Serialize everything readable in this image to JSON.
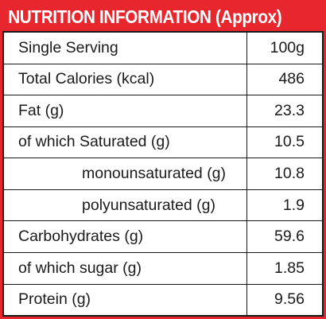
{
  "title": "NUTRITION INFORMATION (Approx)",
  "colors": {
    "header_background": "#e8262d",
    "header_text": "#ffffff",
    "table_text": "#1a1a1a"
  },
  "rows": [
    {
      "label": "Single Serving",
      "value": "100g",
      "indent": false
    },
    {
      "label": "Total Calories (kcal)",
      "value": "486",
      "indent": false
    },
    {
      "label": "Fat (g)",
      "value": "23.3",
      "indent": false
    },
    {
      "label": "of which Saturated (g)",
      "value": "10.5",
      "indent": false
    },
    {
      "label": "monounsaturated (g)",
      "value": "10.8",
      "indent": true
    },
    {
      "label": "polyunsaturated (g)",
      "value": "1.9",
      "indent": true
    },
    {
      "label": "Carbohydrates (g)",
      "value": "59.6",
      "indent": false
    },
    {
      "label": "of which sugar (g)",
      "value": "1.85",
      "indent": false
    },
    {
      "label": "Protein (g)",
      "value": "9.56",
      "indent": false
    }
  ]
}
